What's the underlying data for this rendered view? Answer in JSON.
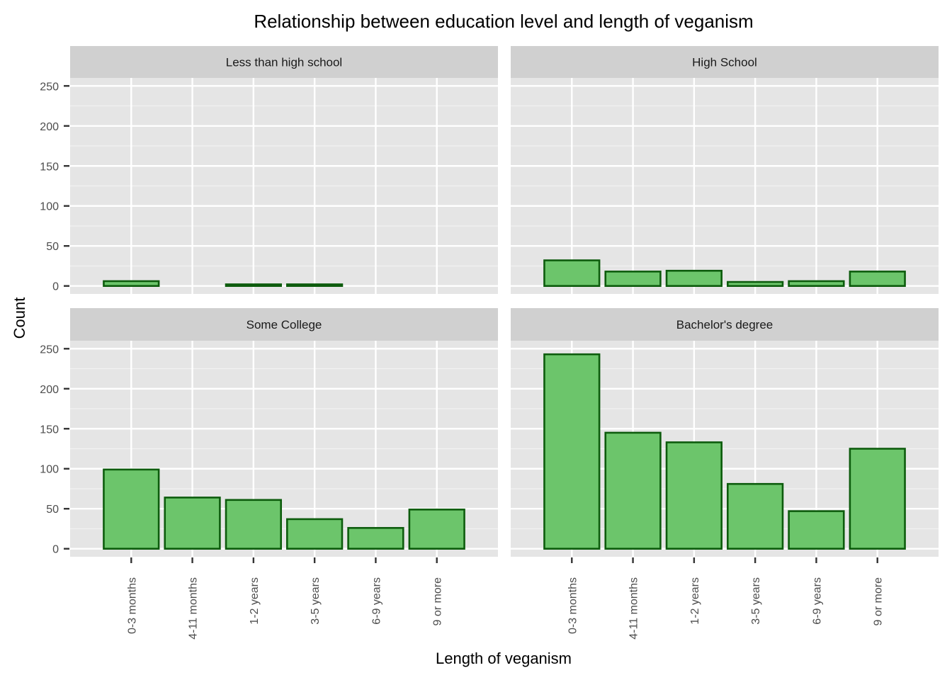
{
  "chart_data": {
    "type": "bar",
    "title": "Relationship between education level and length of veganism",
    "xlabel": "Length of veganism",
    "ylabel": "Count",
    "categories": [
      "0-3 months",
      "4-11 months",
      "1-2 years",
      "3-5 years",
      "6-9 years",
      "9 or more"
    ],
    "y_ticks": [
      0,
      50,
      100,
      150,
      200,
      250
    ],
    "ylim": [
      -10,
      260
    ],
    "grid": true,
    "bar_fill": "#6cc56b",
    "bar_outline": "#0d5c0d",
    "panel_background": "#e5e5e5",
    "strip_background": "#d0d0d0",
    "panels": [
      {
        "name": "Less than high school",
        "values": [
          6,
          0,
          2,
          2,
          0,
          0
        ]
      },
      {
        "name": "High School",
        "values": [
          32,
          18,
          19,
          5,
          6,
          18
        ]
      },
      {
        "name": "Some College",
        "values": [
          99,
          64,
          61,
          37,
          26,
          49
        ]
      },
      {
        "name": "Bachelor's degree",
        "values": [
          243,
          145,
          133,
          81,
          47,
          125
        ]
      }
    ]
  }
}
